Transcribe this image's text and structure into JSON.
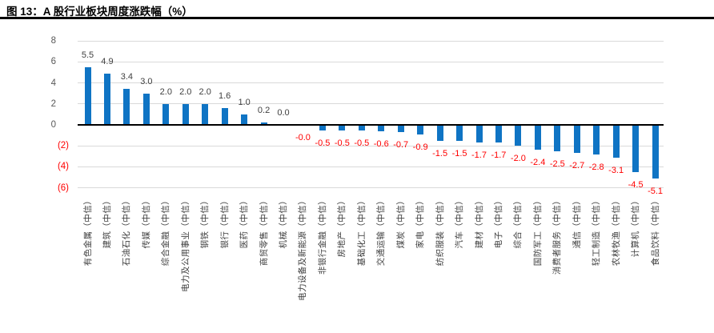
{
  "figure": {
    "title": "图 13：A 股行业板块周度涨跌幅（%）"
  },
  "chart_data": {
    "type": "bar",
    "title": "图 13：A 股行业板块周度涨跌幅（%）",
    "categories": [
      "有色金属（中信）",
      "建筑（中信）",
      "石油石化（中信）",
      "传媒（中信）",
      "综合金融（中信）",
      "电力及公用事业（中信）",
      "钢铁（中信）",
      "银行（中信）",
      "医药（中信）",
      "商贸零售（中信）",
      "机械（中信）",
      "电力设备及新能源（中信）",
      "非银行金融（中信）",
      "房地产（中信）",
      "基础化工（中信）",
      "交通运输（中信）",
      "煤炭（中信）",
      "家电（中信）",
      "纺织服装（中信）",
      "汽车（中信）",
      "建材（中信）",
      "电子（中信）",
      "综合（中信）",
      "国防军工（中信）",
      "消费者服务（中信）",
      "通信（中信）",
      "轻工制造（中信）",
      "农林牧渔（中信）",
      "计算机（中信）",
      "食品饮料（中信）"
    ],
    "values": [
      5.5,
      4.9,
      3.4,
      3.0,
      2.0,
      2.0,
      2.0,
      1.6,
      1.0,
      0.2,
      0.0,
      -0.0,
      -0.5,
      -0.5,
      -0.5,
      -0.6,
      -0.7,
      -0.9,
      -1.5,
      -1.5,
      -1.7,
      -1.7,
      -2.0,
      -2.4,
      -2.5,
      -2.7,
      -2.8,
      -3.1,
      -4.5,
      -5.1
    ],
    "value_labels": [
      "5.5",
      "4.9",
      "3.4",
      "3.0",
      "2.0",
      "2.0",
      "2.0",
      "1.6",
      "1.0",
      "0.2",
      "0.0",
      "-0.0",
      "-0.5",
      "-0.5",
      "-0.5",
      "-0.6",
      "-0.7",
      "-0.9",
      "-1.5",
      "-1.5",
      "-1.7",
      "-1.7",
      "-2.0",
      "-2.4",
      "-2.5",
      "-2.7",
      "-2.8",
      "-3.1",
      "-4.5",
      "-5.1"
    ],
    "xlabel": "",
    "ylabel": "",
    "y_axis": {
      "tick_labels": [
        "8",
        "6",
        "4",
        "2",
        "0",
        "(2)",
        "(4)",
        "(6)"
      ],
      "tick_values": [
        8,
        6,
        4,
        2,
        0,
        -2,
        -4,
        -6
      ],
      "range": [
        -6,
        8
      ]
    },
    "grid": true,
    "legend": false,
    "colors": {
      "bar": "#0F74C4",
      "positive_label": "#404040",
      "negative_label": "#FF0000",
      "y_tick_positive": "#595959",
      "y_tick_negative": "#FF0000",
      "x_tick": "#404040",
      "gridline": "#D9D9D9",
      "axis_line": "#000000",
      "title_rule": "#000000"
    }
  }
}
